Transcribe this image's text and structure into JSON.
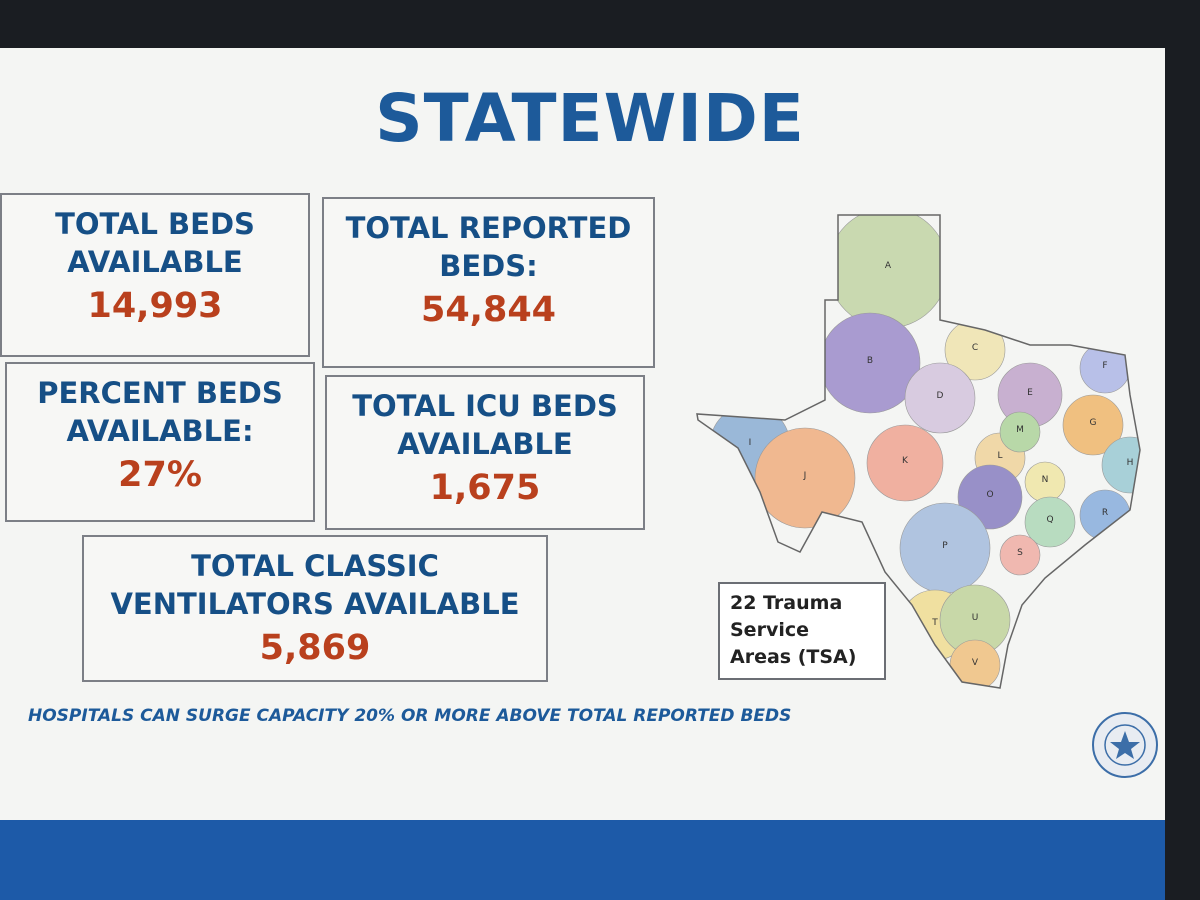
{
  "title": "STATEWIDE",
  "stats": [
    {
      "label_lines": [
        "TOTAL BEDS",
        "AVAILABLE"
      ],
      "value": "14,993"
    },
    {
      "label_lines": [
        "TOTAL REPORTED",
        "BEDS:"
      ],
      "value": "54,844"
    },
    {
      "label_lines": [
        "PERCENT BEDS",
        "AVAILABLE:"
      ],
      "value": "27%"
    },
    {
      "label_lines": [
        "TOTAL ICU BEDS",
        "AVAILABLE"
      ],
      "value": "1,675"
    },
    {
      "label_lines": [
        "TOTAL CLASSIC",
        "VENTILATORS AVAILABLE"
      ],
      "value": "5,869"
    }
  ],
  "note": "HOSPITALS CAN SURGE CAPACITY 20% OR MORE ABOVE TOTAL REPORTED BEDS",
  "map": {
    "legend": [
      "22 Trauma",
      "Service",
      "Areas (TSA)"
    ],
    "regions": [
      "A",
      "B",
      "C",
      "D",
      "E",
      "F",
      "G",
      "H",
      "I",
      "J",
      "K",
      "L",
      "M",
      "N",
      "O",
      "P",
      "Q",
      "R",
      "S",
      "T",
      "U",
      "V"
    ]
  }
}
